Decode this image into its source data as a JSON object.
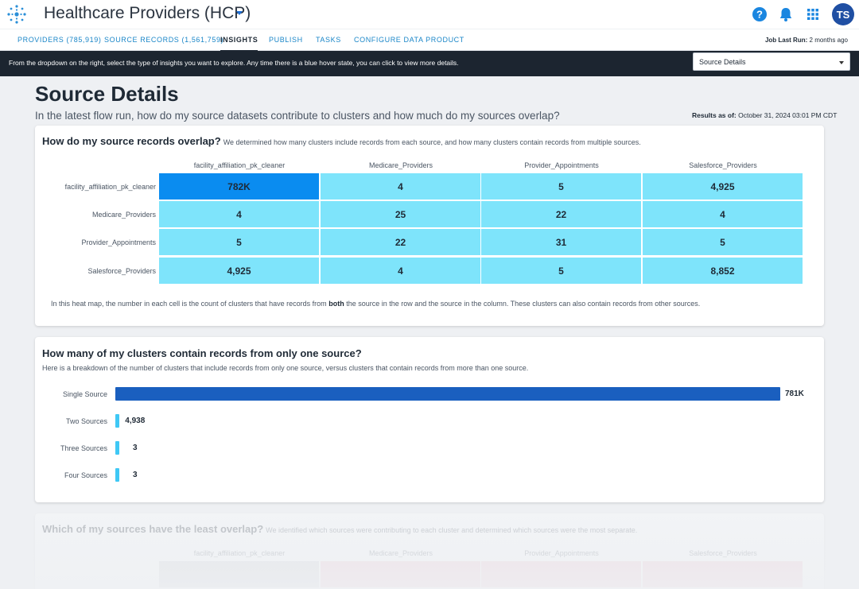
{
  "header": {
    "app_title": "Healthcare Providers (HCP)",
    "avatar_initials": "TS"
  },
  "tabs": [
    {
      "label": "PROVIDERS (785,919)"
    },
    {
      "label": "SOURCE RECORDS (1,561,759)"
    },
    {
      "label": "INSIGHTS"
    },
    {
      "label": "PUBLISH"
    },
    {
      "label": "TASKS"
    },
    {
      "label": "CONFIGURE DATA PRODUCT"
    }
  ],
  "job_run": {
    "label": "Job Last Run:",
    "value": "2 months ago"
  },
  "infobar": {
    "text": "From the dropdown on the right, select the type of insights you want to explore. Any time there is a blue hover state, you can click to view more details.",
    "select_value": "Source Details"
  },
  "page": {
    "title": "Source Details",
    "subtitle": "In the latest flow run, how do my source datasets contribute to clusters and how much do my sources overlap?",
    "results_label": "Results as of:",
    "results_value": "October 31, 2024 03:01 PM CDT"
  },
  "overlap": {
    "question": "How do my source records overlap?",
    "description": "We determined how many clusters include records from each source, and how many clusters contain records from multiple sources.",
    "columns": [
      "facility_affiliation_pk_cleaner",
      "Medicare_Providers",
      "Provider_Appointments",
      "Salesforce_Providers"
    ],
    "rows": [
      {
        "label": "facility_affiliation_pk_cleaner",
        "cells": [
          "782K",
          "4",
          "5",
          "4,925"
        ]
      },
      {
        "label": "Medicare_Providers",
        "cells": [
          "4",
          "25",
          "22",
          "4"
        ]
      },
      {
        "label": "Provider_Appointments",
        "cells": [
          "5",
          "22",
          "31",
          "5"
        ]
      },
      {
        "label": "Salesforce_Providers",
        "cells": [
          "4,925",
          "4",
          "5",
          "8,852"
        ]
      }
    ],
    "note_pre": "In this heat map, the number in each cell is the count of clusters that have records from",
    "note_bold": "both",
    "note_post": "the source in the row and the source in the column. These clusters can also contain records from other sources."
  },
  "single_source": {
    "question": "How many of my clusters contain records from only one source?",
    "description": "Here is a breakdown of the number of clusters that include records from only one source, versus clusters that contain records from more than one source.",
    "bars": [
      {
        "label": "Single Source",
        "value_text": "781K",
        "value": 781000
      },
      {
        "label": "Two Sources",
        "value_text": "4,938",
        "value": 4938
      },
      {
        "label": "Three Sources",
        "value_text": "3",
        "value": 3
      },
      {
        "label": "Four Sources",
        "value_text": "3",
        "value": 3
      }
    ],
    "colors": {
      "primary": "#1a5fbf",
      "secondary": "#3fc8f5"
    }
  },
  "least_overlap": {
    "question": "Which of my sources have the least overlap?",
    "description": "We identified which sources were contributing to each cluster and determined which sources were the most separate.",
    "columns": [
      "facility_affiliation_pk_cleaner",
      "Medicare_Providers",
      "Provider_Appointments",
      "Salesforce_Providers"
    ]
  },
  "colors": {
    "cell_max": "#0a8cf0",
    "cell_default": "#7ee4fb",
    "accent": "#1a86c8"
  }
}
